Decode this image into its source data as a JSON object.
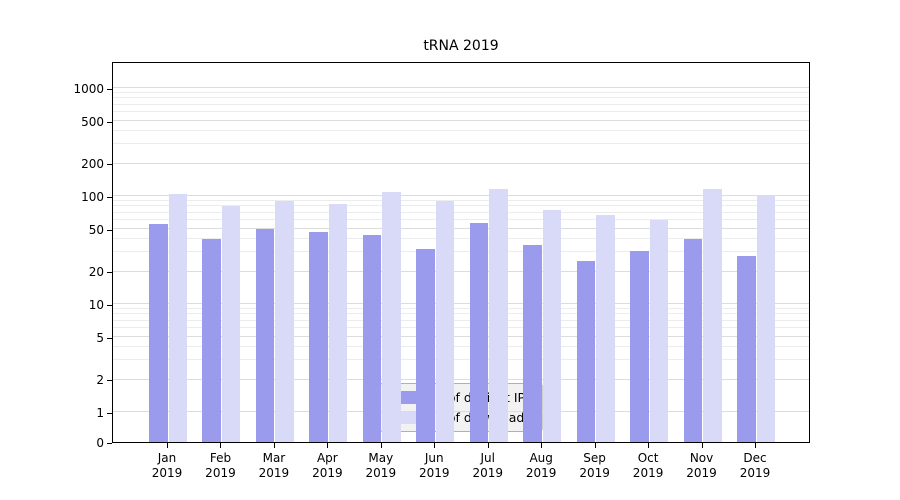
{
  "title": "tRNA 2019",
  "chart_data": {
    "type": "bar",
    "categories": [
      "Jan 2019",
      "Feb 2019",
      "Mar 2019",
      "Apr 2019",
      "May 2019",
      "Jun 2019",
      "Jul 2019",
      "Aug 2019",
      "Sep 2019",
      "Oct 2019",
      "Nov 2019",
      "Dec 2019"
    ],
    "series": [
      {
        "name": "Nb of distinct IPs",
        "color": "#9b9bee",
        "values": [
          55,
          40,
          50,
          46,
          44,
          32,
          56,
          35,
          25,
          31,
          40,
          28
        ]
      },
      {
        "name": "Nb of downloads",
        "color": "#d9d9f8",
        "values": [
          105,
          80,
          90,
          85,
          110,
          90,
          115,
          75,
          67,
          60,
          115,
          103
        ]
      }
    ],
    "title": "tRNA 2019",
    "xlabel": "",
    "ylabel": "",
    "yscale": "symlog",
    "yticks": [
      0,
      1,
      2,
      5,
      10,
      20,
      50,
      100,
      200,
      500,
      1000
    ],
    "ylim": [
      0,
      1800
    ],
    "grid": true,
    "legend_position": "lower center"
  }
}
